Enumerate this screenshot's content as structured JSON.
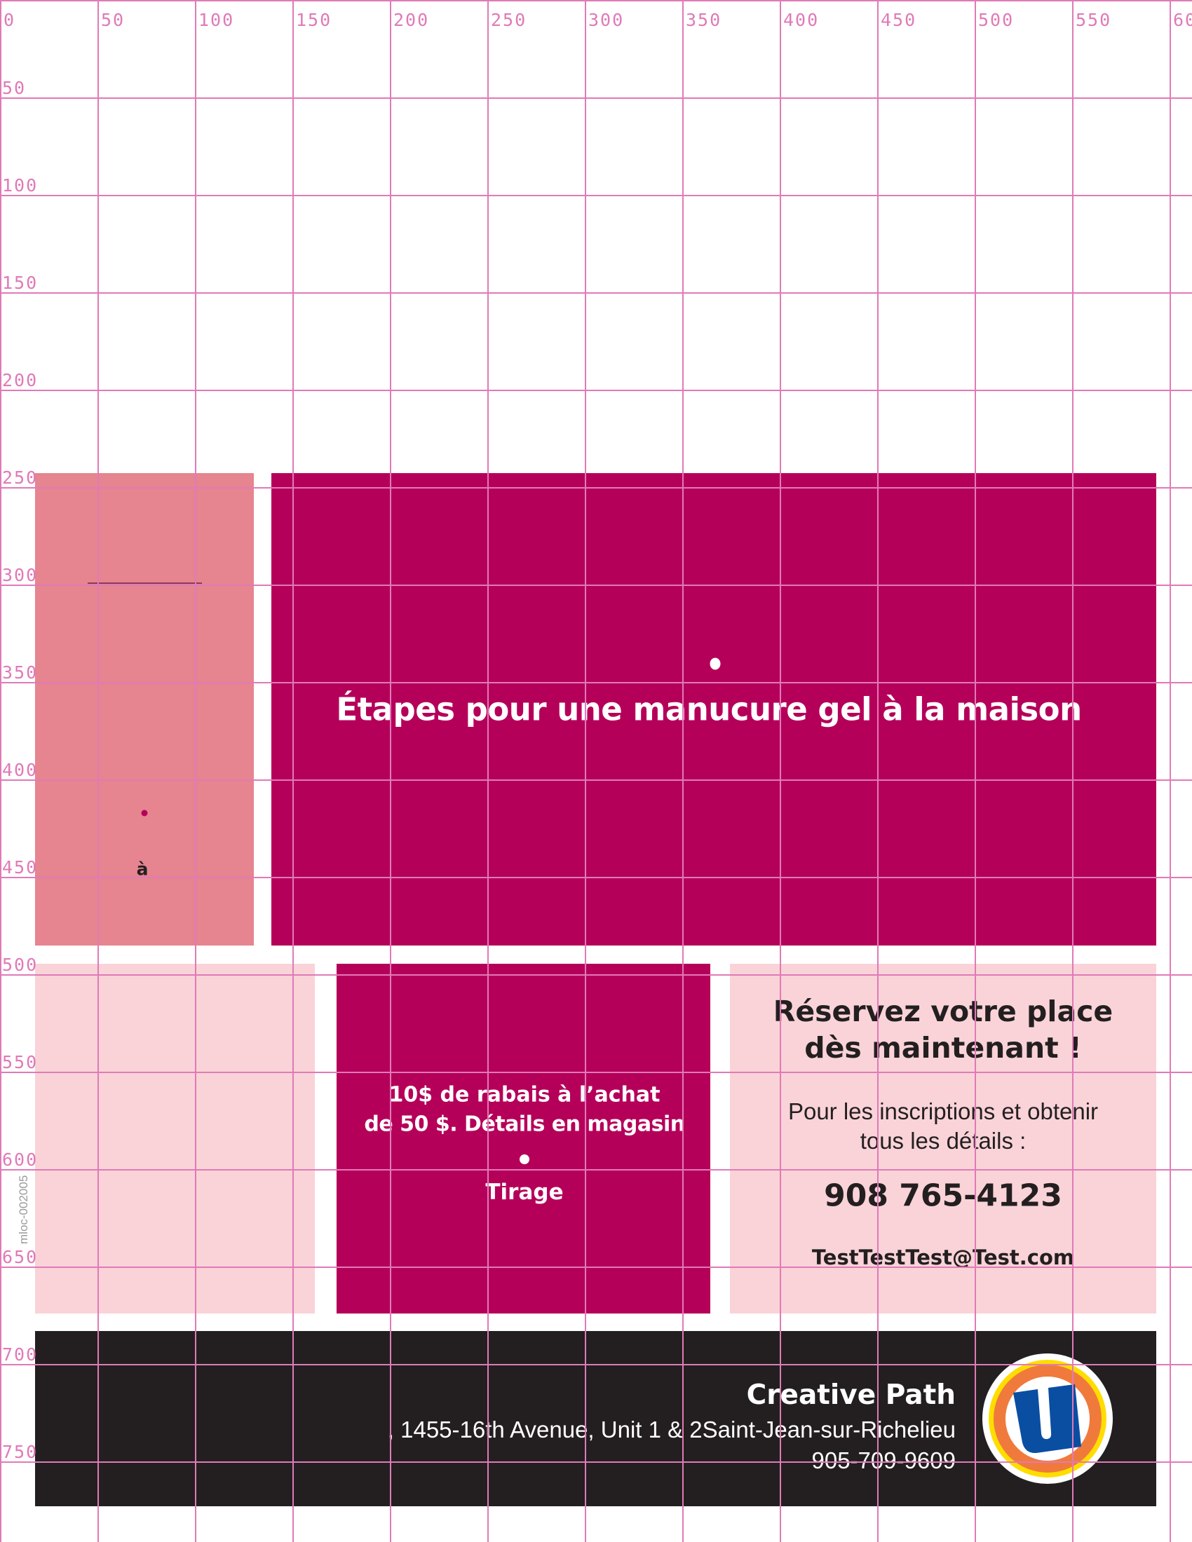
{
  "grid": {
    "x_labels": [
      "0",
      "50",
      "100",
      "150",
      "200",
      "250",
      "300",
      "350",
      "400",
      "450",
      "500",
      "550",
      "600"
    ],
    "y_labels": [
      "50",
      "100",
      "150",
      "200",
      "250",
      "300",
      "350",
      "400",
      "450",
      "500",
      "550",
      "600",
      "650",
      "700",
      "750"
    ],
    "color": "#e07ab8"
  },
  "colors": {
    "left_panel": "#e6848f",
    "magenta": "#b5005a",
    "pale_pink": "#f9d3d8",
    "footer": "#231f20"
  },
  "left_panel": {
    "text": "à"
  },
  "hero": {
    "title": "Étapes pour une manucure gel à la maison"
  },
  "promo": {
    "line1": "10$ de rabais à l’achat",
    "line2": "de 50 $. Détails en magasin",
    "draw": "Tirage"
  },
  "reserve": {
    "heading_line1": "Réservez votre place",
    "heading_line2": "dès maintenant !",
    "body_line1": "Pour les inscriptions et obtenir",
    "body_line2": "tous les détails :",
    "phone": "908 765-4123",
    "email": "TestTestTest@Test.com"
  },
  "footer": {
    "store_name": "Creative Path",
    "address": ", 1455-16th Avenue, Unit 1 & 2Saint-Jean-sur-Richelieu",
    "phone": "905-709-9609",
    "logo": "uniprix-u-logo"
  },
  "watermark": "mloc-002005"
}
